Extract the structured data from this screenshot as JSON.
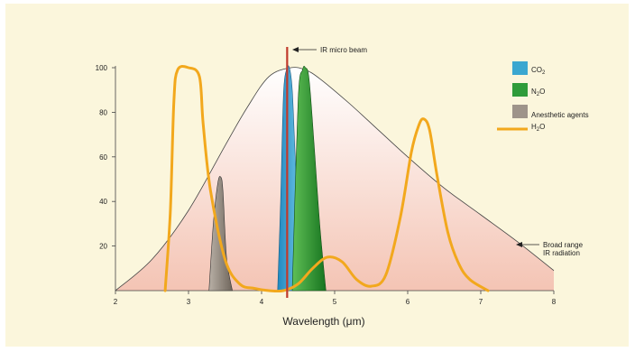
{
  "chart_data": {
    "type": "area",
    "xlabel": "Wavelength (μm)",
    "ylabel": "",
    "xlim": [
      2,
      8
    ],
    "ylim": [
      0,
      100
    ],
    "x_ticks": [
      "2",
      "3",
      "4",
      "5",
      "6",
      "7",
      "8"
    ],
    "y_ticks": [
      "20",
      "40",
      "60",
      "80",
      "100"
    ],
    "legend_position": "top-right",
    "legend": [
      {
        "key": "co2",
        "label": "CO",
        "sub": "2",
        "suffix": "",
        "color": "#3aa7d0",
        "kind": "box"
      },
      {
        "key": "n2o",
        "label": "N",
        "sub": "2",
        "suffix": "O",
        "color": "#2f9c3a",
        "kind": "box"
      },
      {
        "key": "anes",
        "label": "Anesthetic agents",
        "sub": "",
        "suffix": "",
        "color": "#9e948a",
        "kind": "box"
      },
      {
        "key": "h2o",
        "label": "H",
        "sub": "2",
        "suffix": "O",
        "color": "#f2a81d",
        "kind": "line"
      }
    ],
    "annotations": {
      "beam_label": "IR micro beam",
      "broad_label_1": "Broad range",
      "broad_label_2": "IR radiation",
      "beam_x": 4.35
    },
    "series": [
      {
        "key": "broad",
        "x": [
          2.0,
          2.5,
          3.0,
          3.5,
          3.8,
          4.1,
          4.4,
          4.6,
          4.8,
          5.2,
          5.6,
          6.0,
          6.5,
          7.0,
          7.5,
          8.0
        ],
        "y": [
          0,
          14,
          36,
          65,
          82,
          96,
          100,
          99,
          95,
          84,
          72,
          60,
          46,
          34,
          22,
          9
        ]
      },
      {
        "key": "h2o",
        "x": [
          2.68,
          2.75,
          2.8,
          2.85,
          3.0,
          3.15,
          3.2,
          3.3,
          3.5,
          3.7,
          3.9,
          4.1,
          4.3,
          4.5,
          4.7,
          4.9,
          5.1,
          5.3,
          5.5,
          5.7,
          5.9,
          6.05,
          6.15,
          6.22,
          6.3,
          6.4,
          6.55,
          6.7,
          6.85,
          7.1
        ],
        "y": [
          0,
          35,
          85,
          99,
          100,
          96,
          75,
          45,
          14,
          3,
          1,
          0,
          0,
          3,
          10,
          15,
          13,
          5,
          2,
          7,
          33,
          62,
          74,
          77,
          72,
          52,
          26,
          12,
          5,
          0
        ]
      },
      {
        "key": "co2",
        "x": [
          4.22,
          4.26,
          4.3,
          4.34,
          4.38,
          4.42,
          4.46,
          4.52,
          4.6
        ],
        "y": [
          0,
          40,
          88,
          99,
          100,
          90,
          60,
          22,
          0
        ]
      },
      {
        "key": "n2o",
        "x": [
          4.42,
          4.5,
          4.56,
          4.6,
          4.65,
          4.72,
          4.8,
          4.88
        ],
        "y": [
          0,
          85,
          99,
          100,
          95,
          65,
          28,
          0
        ]
      },
      {
        "key": "anes",
        "x": [
          3.28,
          3.34,
          3.4,
          3.44,
          3.47,
          3.52,
          3.6
        ],
        "y": [
          0,
          30,
          48,
          51,
          45,
          15,
          0
        ]
      }
    ]
  }
}
